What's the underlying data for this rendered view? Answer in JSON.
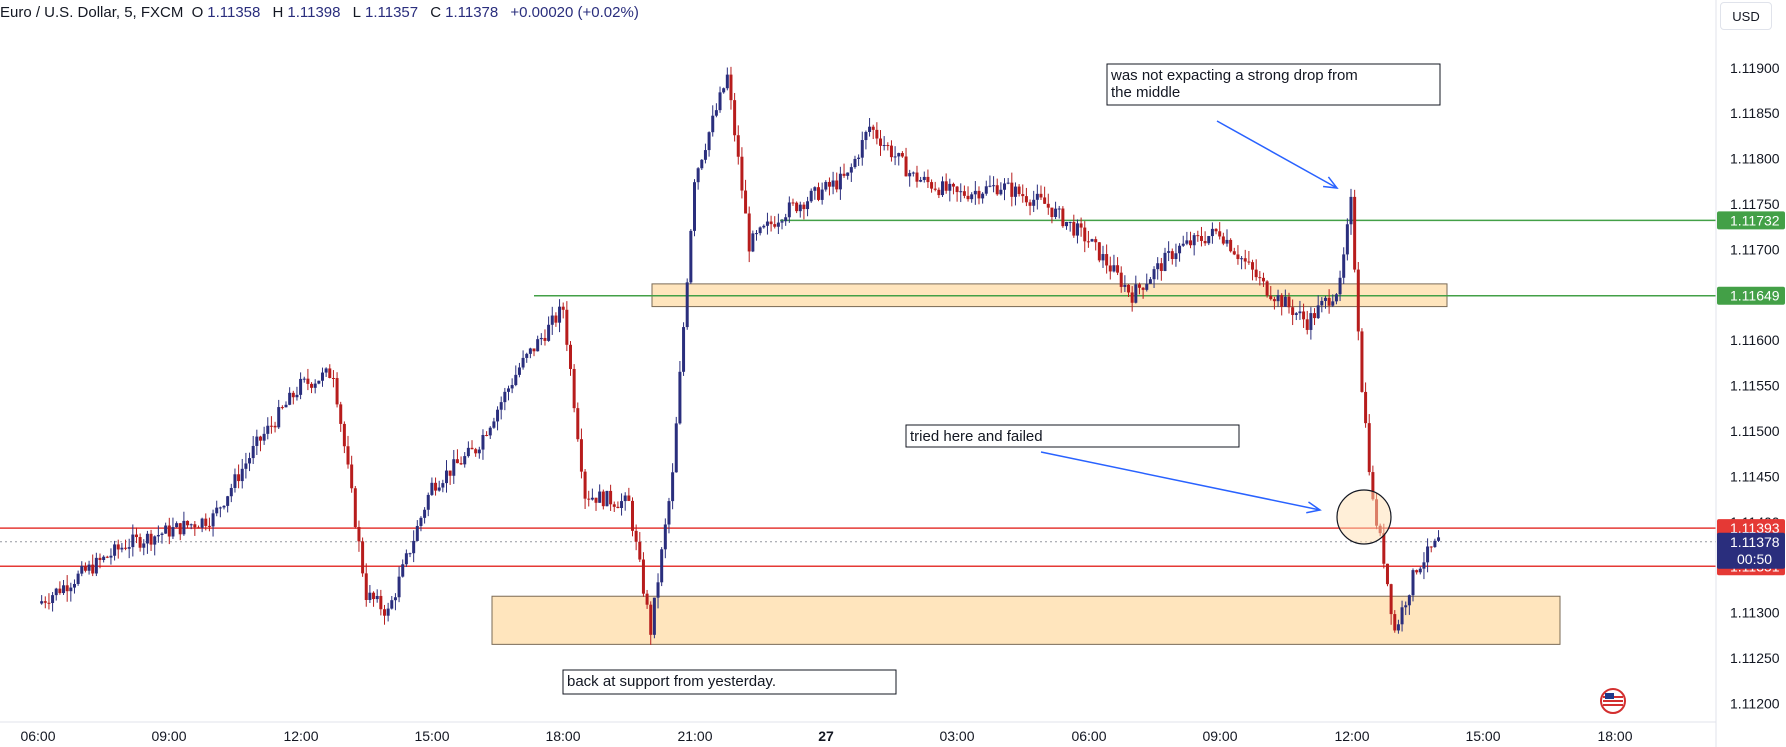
{
  "header": {
    "symbol": "Euro / U.S. Dollar, 5, FXCM",
    "o_label": "O",
    "o": "1.11358",
    "h_label": "H",
    "h": "1.11398",
    "l_label": "L",
    "l": "1.11357",
    "c_label": "C",
    "c": "1.11378",
    "change": "+0.00020 (+0.02%)"
  },
  "currency_button": "USD",
  "icons": {
    "flag": "us-flag-icon"
  },
  "chart_data": {
    "type": "candlestick",
    "title": "Euro / U.S. Dollar, 5, FXCM",
    "ylim": [
      1.11185,
      1.11935
    ],
    "y_ticks": [
      "1.11200",
      "1.11250",
      "1.11300",
      "1.11350",
      "1.11400",
      "1.11450",
      "1.11500",
      "1.11550",
      "1.11600",
      "1.11650",
      "1.11700",
      "1.11750",
      "1.11800",
      "1.11850",
      "1.11900"
    ],
    "x_ticks": [
      "06:00",
      "09:00",
      "12:00",
      "15:00",
      "18:00",
      "21:00",
      "27",
      "03:00",
      "06:00",
      "09:00",
      "12:00",
      "15:00",
      "18:00"
    ],
    "grid": false,
    "colors": {
      "up": "#2a2e7d",
      "down": "#b71c1c",
      "green_line": "#43a047",
      "red_line": "#e53935",
      "zone": "#ffe0b2",
      "arrow": "#2962ff"
    },
    "price_path": [
      [
        "06:00",
        1.1131
      ],
      [
        "08:00",
        1.11375
      ],
      [
        "09:00",
        1.1139
      ],
      [
        "10:00",
        1.11405
      ],
      [
        "11:00",
        1.11485
      ],
      [
        "12:00",
        1.1155
      ],
      [
        "12:45",
        1.11565
      ],
      [
        "13:30",
        1.1132
      ],
      [
        "14:00",
        1.113
      ],
      [
        "15:00",
        1.1144
      ],
      [
        "16:00",
        1.1148
      ],
      [
        "17:00",
        1.1157
      ],
      [
        "18:00",
        1.11635
      ],
      [
        "18:30",
        1.1143
      ],
      [
        "19:30",
        1.1142
      ],
      [
        "20:00",
        1.1128
      ],
      [
        "20:30",
        1.1145
      ],
      [
        "21:00",
        1.1178
      ],
      [
        "21:45",
        1.1189
      ],
      [
        "22:15",
        1.11705
      ],
      [
        "23:00",
        1.1174
      ],
      [
        "00:30",
        1.1178
      ],
      [
        "01:00",
        1.11835
      ],
      [
        "02:00",
        1.1178
      ],
      [
        "03:00",
        1.1176
      ],
      [
        "04:00",
        1.1177
      ],
      [
        "05:00",
        1.1175
      ],
      [
        "06:00",
        1.1171
      ],
      [
        "07:00",
        1.1165
      ],
      [
        "08:00",
        1.117
      ],
      [
        "09:00",
        1.1172
      ],
      [
        "10:00",
        1.1166
      ],
      [
        "11:00",
        1.1162
      ],
      [
        "11:45",
        1.1166
      ],
      [
        "12:00",
        1.1175
      ],
      [
        "12:15",
        1.1155
      ],
      [
        "12:30",
        1.1142
      ],
      [
        "12:45",
        1.1136
      ],
      [
        "13:00",
        1.1128
      ],
      [
        "13:30",
        1.1135
      ],
      [
        "14:00",
        1.11378
      ]
    ],
    "horizontal_lines": [
      {
        "price": 1.11732,
        "label": "1.11732",
        "color": "green"
      },
      {
        "price": 1.11649,
        "label": "1.11649",
        "color": "green"
      },
      {
        "price": 1.11393,
        "label": "1.11393",
        "color": "red"
      },
      {
        "price": 1.11351,
        "label": "1.11351",
        "color": "red"
      }
    ],
    "current_price": {
      "price": 1.11378,
      "label": "1.11378",
      "countdown": "00:50"
    },
    "zones": [
      {
        "from": 1.11637,
        "to": 1.11662
      },
      {
        "from": 1.11265,
        "to": 1.11318
      }
    ],
    "annotations": [
      "was not expacting a strong drop from the middle",
      "tried here and failed",
      "back at support from yesterday."
    ]
  }
}
